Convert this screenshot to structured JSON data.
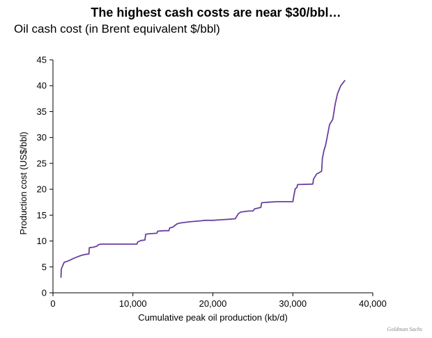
{
  "header": {
    "title": "The highest cash costs are near $30/bbl…",
    "subtitle": "Oil cash cost (in Brent equivalent $/bbl)",
    "source": "Goldman Sachs"
  },
  "chart_data": {
    "type": "line",
    "xlabel": "Cumulative peak oil production (kb/d)",
    "ylabel": "Production cost (US$/bbl)",
    "xlim": [
      0,
      40000
    ],
    "ylim": [
      0,
      45
    ],
    "xticks": [
      0,
      10000,
      20000,
      30000,
      40000
    ],
    "xtick_labels": [
      "0",
      "10,000",
      "20,000",
      "30,000",
      "40,000"
    ],
    "yticks": [
      0,
      5,
      10,
      15,
      20,
      25,
      30,
      35,
      40,
      45
    ],
    "ytick_labels": [
      "0",
      "5",
      "10",
      "15",
      "20",
      "25",
      "30",
      "35",
      "40",
      "45"
    ],
    "grid": false,
    "line_color": "#6a3fa0",
    "series": [
      {
        "x": [
          1000,
          1050,
          1150,
          1400,
          2000,
          2500,
          3000,
          3500,
          4000,
          4500,
          4550,
          5000,
          5500,
          5700,
          6000,
          8000,
          10500,
          10600,
          11000,
          11500,
          11600,
          12000,
          13000,
          13100,
          14000,
          14500,
          14600,
          15000,
          15500,
          15700,
          16000,
          17000,
          18500,
          19000,
          20000,
          21000,
          22000,
          22800,
          23200,
          23500,
          24000,
          24500,
          25000,
          25200,
          26000,
          26100,
          27000,
          28000,
          29000,
          30000,
          30100,
          30300,
          30500,
          30600,
          32500,
          32600,
          33000,
          33200,
          33300,
          33600,
          33700,
          33900,
          34100,
          34600,
          35000,
          35300,
          35600,
          36000,
          36500
        ],
        "y": [
          3.0,
          4.6,
          5.0,
          5.9,
          6.2,
          6.6,
          6.9,
          7.2,
          7.4,
          7.5,
          8.7,
          8.8,
          9.0,
          9.3,
          9.4,
          9.4,
          9.4,
          9.8,
          10.1,
          10.2,
          11.3,
          11.4,
          11.5,
          11.9,
          12.0,
          12.0,
          12.5,
          12.7,
          13.3,
          13.4,
          13.5,
          13.7,
          13.9,
          14.0,
          14.0,
          14.1,
          14.2,
          14.3,
          15.3,
          15.6,
          15.7,
          15.8,
          15.8,
          16.2,
          16.5,
          17.4,
          17.5,
          17.6,
          17.6,
          17.6,
          18.5,
          20.1,
          20.3,
          20.9,
          21.0,
          22.0,
          23.0,
          23.1,
          23.2,
          23.5,
          26.0,
          27.5,
          28.5,
          32.5,
          33.5,
          36.5,
          38.5,
          40.0,
          41.0
        ]
      }
    ]
  }
}
